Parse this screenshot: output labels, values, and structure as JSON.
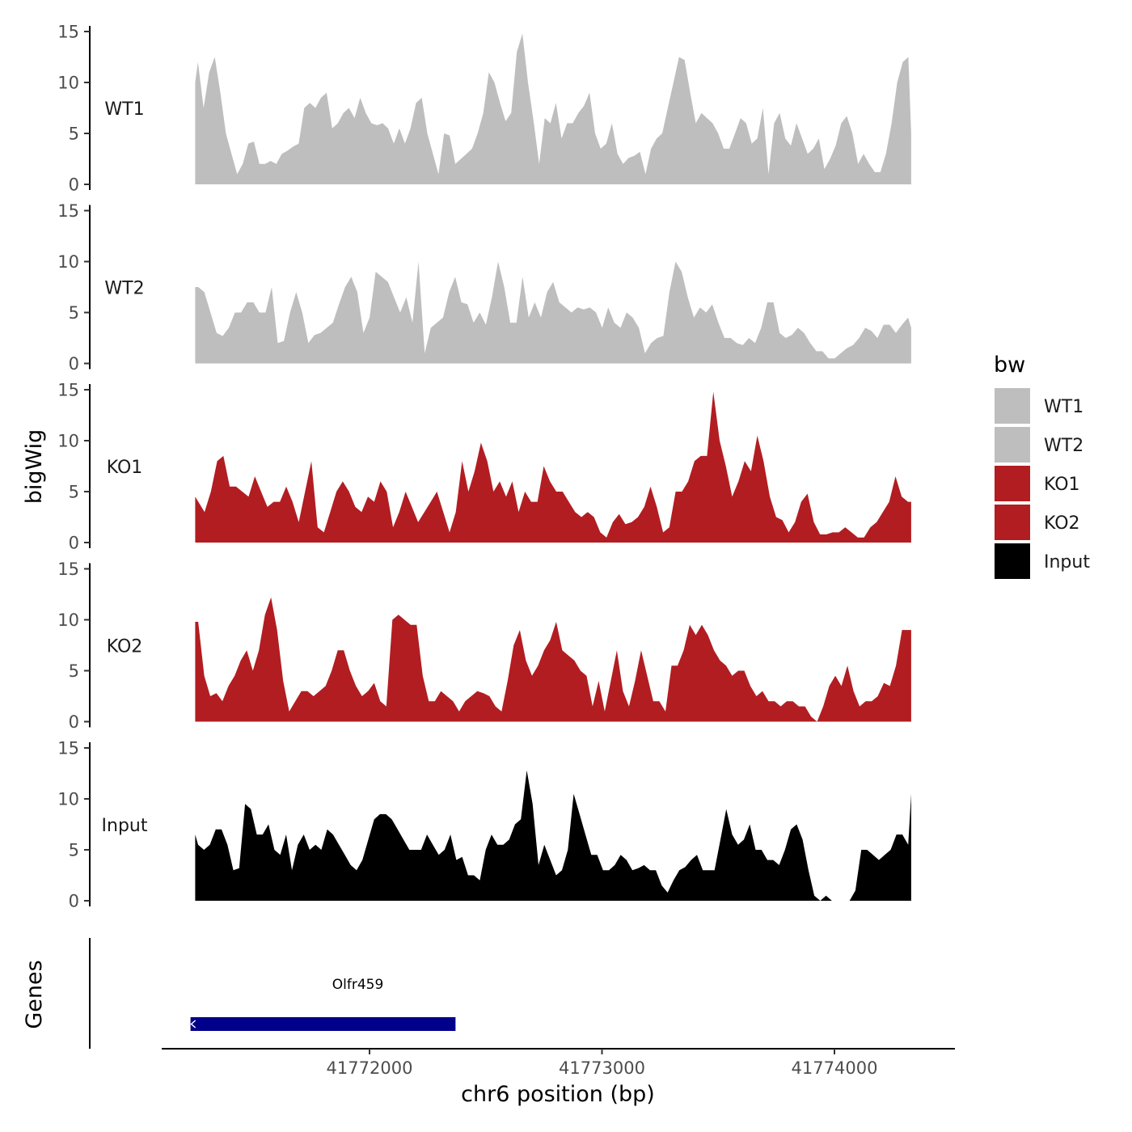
{
  "chart_data": {
    "type": "area",
    "ylabel": "bigWig",
    "xlabel": "chr6 position (bp)",
    "xlim": [
      41771000,
      41774500
    ],
    "ylim": [
      0,
      15
    ],
    "yticks": [
      0,
      5,
      10,
      15
    ],
    "xticks": [
      41772000,
      41773000,
      41774000
    ],
    "xtick_labels": [
      "41772000",
      "41773000",
      "41774000"
    ],
    "x_start": 41771250,
    "x_end": 41774330,
    "colors": {
      "WT1": "#bebebe",
      "WT2": "#bebebe",
      "KO1": "#b21d21",
      "KO2": "#b21d21",
      "Input": "#000000",
      "gene": "#00008b"
    },
    "legend": {
      "title": "bw",
      "entries": [
        "WT1",
        "WT2",
        "KO1",
        "KO2",
        "Input"
      ],
      "position": "right"
    },
    "series": [
      {
        "name": "WT1",
        "values": [
          12,
          7.5,
          11,
          12.5,
          9,
          5,
          3,
          1,
          2,
          4,
          4.2,
          2,
          2,
          2.3,
          2,
          3,
          3.3,
          3.7,
          4,
          7.5,
          8,
          7.5,
          8.5,
          9,
          5.5,
          6,
          7,
          7.5,
          6.5,
          8.5,
          7,
          6,
          5.8,
          6,
          5.5,
          4,
          5.5,
          4,
          5.5,
          8,
          8.5,
          5,
          3,
          1,
          5,
          4.8,
          2,
          2.5,
          3,
          3.5,
          5,
          7,
          11,
          10,
          8,
          6.2,
          7,
          13,
          14.8,
          10,
          6.2,
          2,
          6.5,
          6,
          8,
          4.5,
          6,
          6,
          7,
          7.7,
          9,
          5,
          3.5,
          4,
          6,
          3,
          2,
          2.6,
          2.8,
          3.2,
          1,
          3.5,
          4.5,
          5,
          7.5,
          10,
          12.5,
          12.2,
          9,
          6,
          7,
          6.5,
          6,
          5,
          3.5,
          3.5,
          5,
          6.5,
          6,
          4,
          4.5,
          7.5,
          1,
          6,
          7,
          4.5,
          3.8,
          6,
          4.5,
          3,
          3.5,
          4.5,
          1.5,
          2.5,
          3.8,
          6,
          6.7,
          5,
          2,
          3,
          2,
          1.2,
          1.2,
          3,
          6,
          10,
          12,
          12.5
        ],
        "ends": [
          10,
          5
        ]
      },
      {
        "name": "WT2",
        "values": [
          7.5,
          7,
          5,
          3,
          2.7,
          3.5,
          5,
          5,
          6,
          6,
          5,
          5,
          7.5,
          2,
          2.2,
          5,
          7,
          5,
          2,
          2.8,
          3,
          3.5,
          4,
          5.8,
          7.5,
          8.5,
          7,
          3,
          4.5,
          9,
          8.5,
          8,
          6.5,
          5,
          6.5,
          4,
          10,
          1,
          3.5,
          4,
          4.5,
          7,
          8.5,
          6,
          5.8,
          4,
          5,
          3.8,
          6.5,
          10,
          7.5,
          4,
          4,
          8.5,
          4.5,
          6,
          4.5,
          7,
          8,
          6,
          5.5,
          5,
          5.5,
          5.3,
          5.5,
          5,
          3.5,
          5.5,
          4,
          3.5,
          5,
          4.5,
          3.5,
          1,
          2,
          2.5,
          2.7,
          7,
          10,
          9,
          6.5,
          4.5,
          5.5,
          5,
          5.8,
          4,
          2.5,
          2.5,
          2,
          1.8,
          2.5,
          2,
          3.5,
          6,
          6,
          3,
          2.5,
          2.8,
          3.5,
          3,
          2,
          1.2,
          1.2,
          0.5,
          0.5,
          1,
          1.5,
          1.8,
          2.5,
          3.5,
          3.2,
          2.5,
          3.8,
          3.8,
          3,
          3.8,
          4.5
        ],
        "ends": [
          7.5,
          3.5
        ]
      },
      {
        "name": "KO1",
        "values": [
          4,
          3,
          5,
          8,
          8.5,
          5.5,
          5.5,
          5,
          4.5,
          6.5,
          5,
          3.5,
          4,
          4,
          5.5,
          4,
          2,
          5,
          8,
          1.5,
          1,
          3,
          5,
          6,
          5,
          3.5,
          3,
          4.5,
          4,
          6,
          5,
          1.5,
          3,
          5,
          3.5,
          2,
          3,
          4,
          5,
          3,
          1,
          3,
          8,
          5,
          7,
          9.8,
          8,
          5,
          6,
          4.5,
          6,
          3,
          5,
          4,
          4,
          7.5,
          6,
          5,
          5,
          4,
          3,
          2.5,
          3,
          2.5,
          1,
          0.5,
          2,
          2.8,
          1.8,
          2,
          2.5,
          3.5,
          5.5,
          3.5,
          1,
          1.5,
          5,
          5,
          6,
          8,
          8.5,
          8.5,
          14.8,
          10,
          7.5,
          4.5,
          6,
          8,
          7,
          10.5,
          8,
          4.5,
          2.5,
          2.2,
          1,
          2,
          4,
          4.8,
          2,
          0.8,
          0.8,
          1,
          1,
          1.5,
          1,
          0.5,
          0.5,
          1.5,
          2,
          3,
          4,
          6.5,
          4.5,
          4
        ],
        "ends": [
          4.5,
          4
        ]
      },
      {
        "name": "KO2",
        "values": [
          9.8,
          4.5,
          2.5,
          2.8,
          2,
          3.5,
          4.5,
          6,
          7,
          5,
          7,
          10.5,
          12.2,
          9,
          4,
          1,
          2,
          3,
          3,
          2.5,
          3,
          3.5,
          5,
          7,
          7,
          5,
          3.5,
          2.5,
          3,
          3.8,
          2,
          1.5,
          10,
          10.5,
          10,
          9.5,
          9.5,
          4.5,
          2,
          2,
          3,
          2.5,
          2,
          1,
          2,
          2.5,
          3,
          2.8,
          2.5,
          1.5,
          1,
          4,
          7.5,
          9,
          6,
          4.5,
          5.5,
          7,
          8,
          9.8,
          7,
          6.5,
          6,
          5,
          4.5,
          1.5,
          4,
          1,
          4,
          7,
          3,
          1.5,
          4,
          7,
          4.5,
          2,
          2,
          1,
          5.5,
          5.5,
          7,
          9.5,
          8.5,
          9.5,
          8.5,
          7,
          6,
          5.5,
          4.5,
          5,
          5,
          3.5,
          2.5,
          3,
          2,
          2,
          1.5,
          2,
          2,
          1.5,
          1.5,
          0.5,
          0,
          1.5,
          3.5,
          4.5,
          3.5,
          5.5,
          3,
          1.5,
          2,
          2,
          2.5,
          3.8,
          3.5,
          5.5,
          9,
          9
        ],
        "ends": [
          9.8,
          9
        ]
      },
      {
        "name": "Input",
        "values": [
          5.5,
          5,
          5.5,
          7,
          7,
          5.5,
          3,
          3.2,
          9.5,
          9,
          6.5,
          6.5,
          7.5,
          5,
          4.5,
          6.5,
          3,
          5.5,
          6.5,
          5,
          5.5,
          5,
          7,
          6.5,
          5.5,
          4.5,
          3.5,
          3,
          4,
          6,
          8,
          8.5,
          8.5,
          8,
          7,
          6,
          5,
          5,
          5,
          6.5,
          5.5,
          4.5,
          5,
          6.5,
          4,
          4.3,
          2.5,
          2.5,
          2,
          5,
          6.5,
          5.5,
          5.5,
          6,
          7.5,
          8,
          12.8,
          9.5,
          3.5,
          5.5,
          4,
          2.5,
          3,
          5,
          10.5,
          8.5,
          6.5,
          4.5,
          4.5,
          3,
          3,
          3.5,
          4.5,
          4,
          3,
          3.2,
          3.5,
          3,
          3,
          1.5,
          0.8,
          2,
          3,
          3.3,
          4,
          4.5,
          3,
          3,
          3,
          6,
          9,
          6.5,
          5.5,
          6,
          7.5,
          5,
          5,
          4,
          4,
          3.5,
          5,
          7,
          7.5,
          6,
          3,
          0.5,
          0,
          0.5,
          0,
          0,
          0,
          0,
          1,
          5,
          5,
          4.5,
          4,
          4.5,
          5,
          6.5,
          6.5,
          5.5
        ],
        "ends": [
          6.5,
          10.5
        ]
      }
    ],
    "genes": [
      {
        "name": "Olfr459",
        "start": 41771230,
        "end": 41772370,
        "strand": "-"
      }
    ],
    "gene_track_label": "Genes"
  }
}
